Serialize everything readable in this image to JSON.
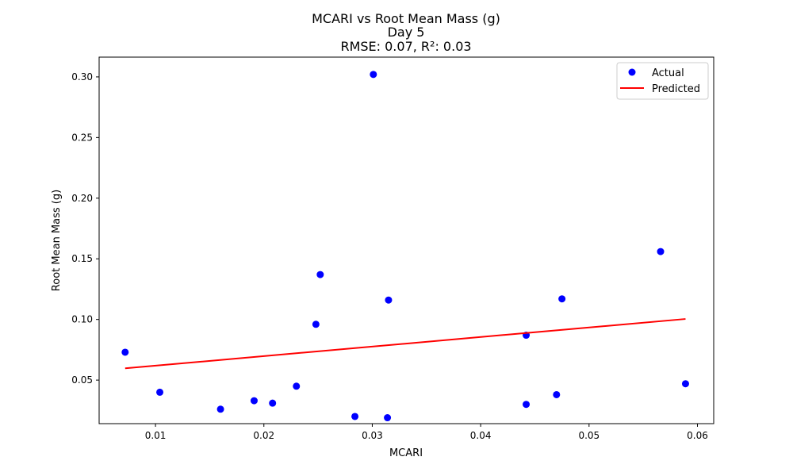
{
  "chart_data": {
    "type": "scatter",
    "title": "MCARI vs Root Mean Mass (g)",
    "subtitle": "Day 5",
    "metrics": "RMSE: 0.07, R²: 0.03",
    "xlabel": "MCARI",
    "ylabel": "Root Mean Mass (g)",
    "xlim": [
      0.0048,
      0.0615
    ],
    "ylim": [
      0.0141,
      0.3163
    ],
    "xticks": [
      0.01,
      0.02,
      0.03,
      0.04,
      0.05,
      0.06
    ],
    "xtick_labels": [
      "0.01",
      "0.02",
      "0.03",
      "0.04",
      "0.05",
      "0.06"
    ],
    "yticks": [
      0.05,
      0.1,
      0.15,
      0.2,
      0.25,
      0.3
    ],
    "ytick_labels": [
      "0.05",
      "0.10",
      "0.15",
      "0.20",
      "0.25",
      "0.30"
    ],
    "grid": false,
    "legend_position": "top-right",
    "series": [
      {
        "name": "Actual",
        "kind": "scatter",
        "color": "#0000ff",
        "points": [
          {
            "x": 0.0072,
            "y": 0.073
          },
          {
            "x": 0.0104,
            "y": 0.04
          },
          {
            "x": 0.016,
            "y": 0.026
          },
          {
            "x": 0.0191,
            "y": 0.033
          },
          {
            "x": 0.0208,
            "y": 0.031
          },
          {
            "x": 0.023,
            "y": 0.045
          },
          {
            "x": 0.0248,
            "y": 0.096
          },
          {
            "x": 0.0252,
            "y": 0.137
          },
          {
            "x": 0.0284,
            "y": 0.02
          },
          {
            "x": 0.0301,
            "y": 0.302
          },
          {
            "x": 0.0314,
            "y": 0.019
          },
          {
            "x": 0.0315,
            "y": 0.116
          },
          {
            "x": 0.0442,
            "y": 0.03
          },
          {
            "x": 0.0442,
            "y": 0.087
          },
          {
            "x": 0.047,
            "y": 0.038
          },
          {
            "x": 0.0475,
            "y": 0.117
          },
          {
            "x": 0.0566,
            "y": 0.156
          },
          {
            "x": 0.0589,
            "y": 0.047
          }
        ]
      },
      {
        "name": "Predicted",
        "kind": "line",
        "color": "#ff0000",
        "points": [
          {
            "x": 0.0072,
            "y": 0.0597
          },
          {
            "x": 0.0589,
            "y": 0.1004
          }
        ]
      }
    ]
  }
}
